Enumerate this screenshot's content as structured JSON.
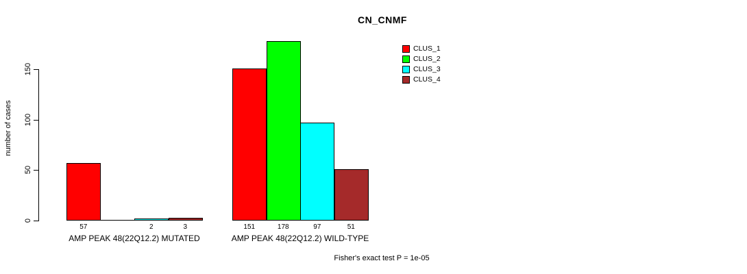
{
  "chart_data": {
    "type": "bar",
    "title": "CN_CNMF",
    "ylabel": "number of cases",
    "xlabel": "",
    "yticks": [
      "0",
      "50",
      "100",
      "150"
    ],
    "ytick_values": [
      0,
      50,
      100,
      150
    ],
    "ylim": [
      0,
      185
    ],
    "grid": false,
    "legend_position": "top-right",
    "background": "#FFFFFF",
    "axis_color": "#000000",
    "text_color": "#000000",
    "categories": [
      "AMP PEAK 48(22Q12.2) MUTATED",
      "AMP PEAK 48(22Q12.2) WILD-TYPE"
    ],
    "series": [
      {
        "name": "CLUS_1",
        "color": "#FF0000",
        "values": [
          57,
          151
        ]
      },
      {
        "name": "CLUS_2",
        "color": "#00FF00",
        "values": [
          0,
          178
        ]
      },
      {
        "name": "CLUS_3",
        "color": "#00FFFF",
        "values": [
          2,
          97
        ]
      },
      {
        "name": "CLUS_4",
        "color": "#A52A2A",
        "values": [
          3,
          51
        ]
      }
    ],
    "bar_value_labels": [
      [
        "57",
        "",
        "2",
        "3"
      ],
      [
        "151",
        "178",
        "97",
        "51"
      ]
    ],
    "annotation": "Fisher's exact test P = 1e-05"
  }
}
